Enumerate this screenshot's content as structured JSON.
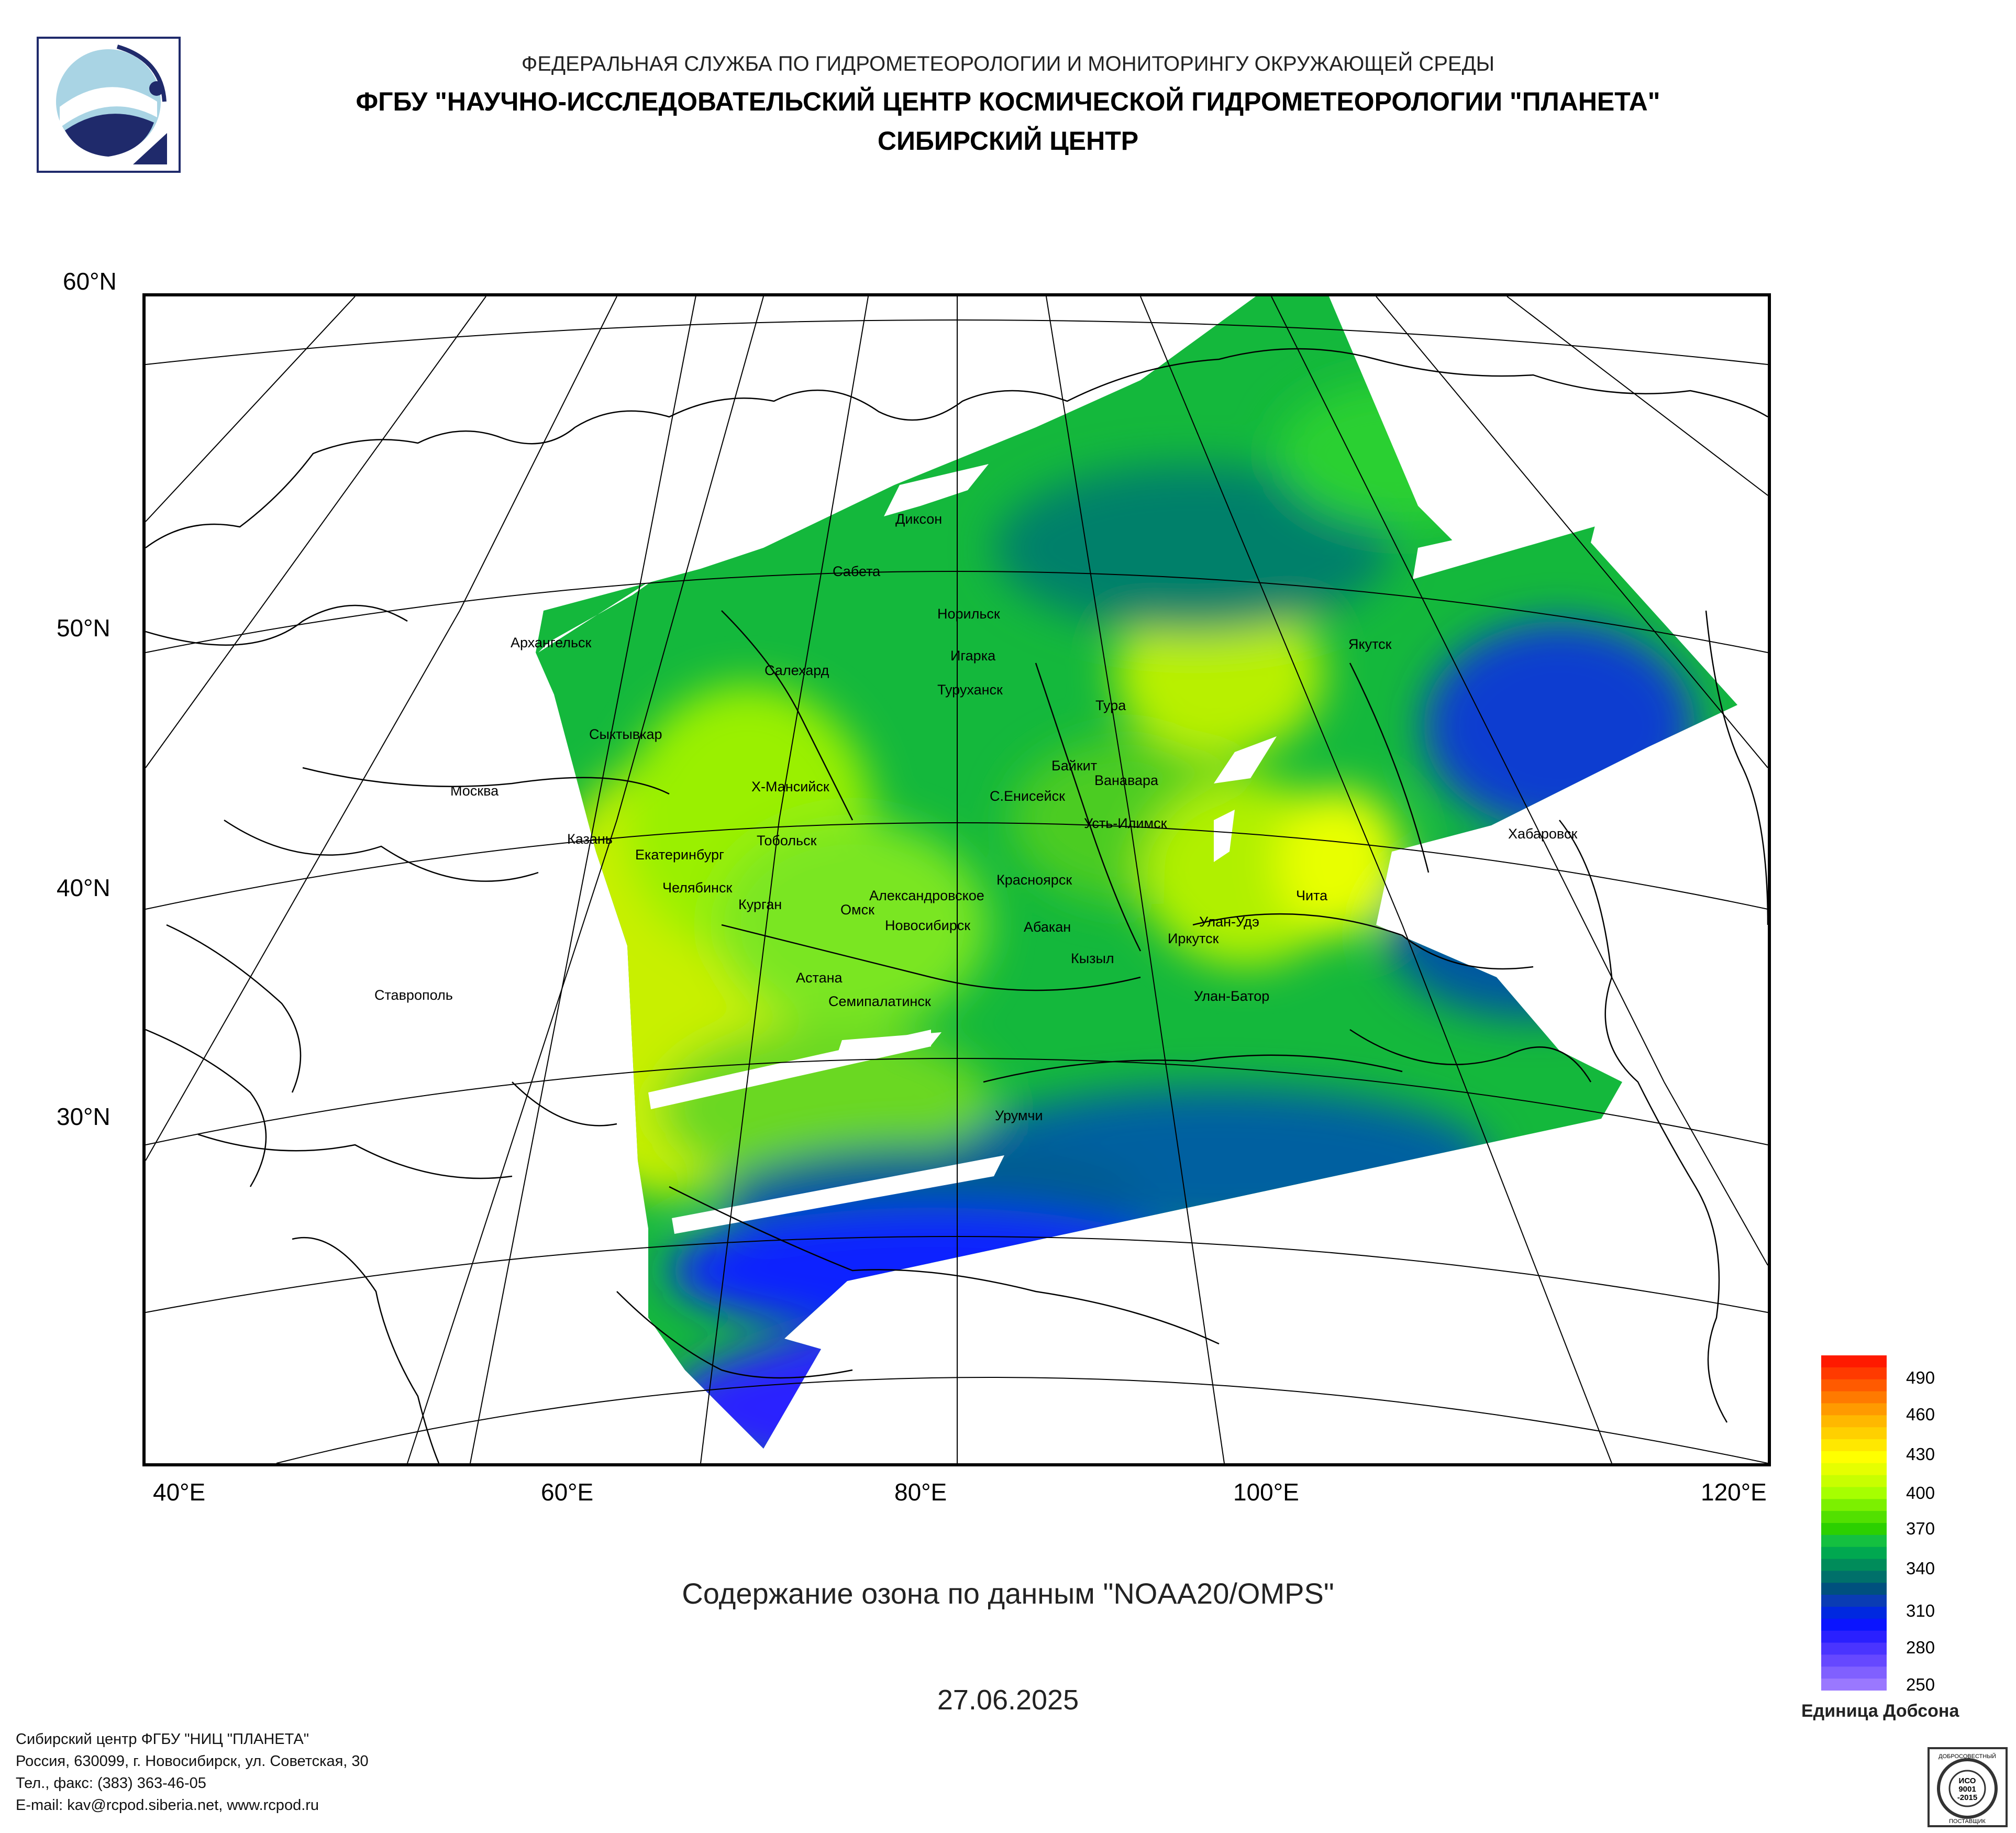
{
  "header": {
    "line1": "ФЕДЕРАЛЬНАЯ СЛУЖБА ПО ГИДРОМЕТЕОРОЛОГИИ И МОНИТОРИНГУ ОКРУЖАЮЩЕЙ СРЕДЫ",
    "line2": "ФГБУ \"НАУЧНО-ИССЛЕДОВАТЕЛЬСКИЙ ЦЕНТР КОСМИЧЕСКОЙ ГИДРОМЕТЕОРОЛОГИИ \"ПЛАНЕТА\"",
    "line3": "СИБИРСКИЙ ЦЕНТР"
  },
  "map": {
    "lat_labels": [
      "60°N",
      "50°N",
      "40°N",
      "30°N"
    ],
    "lon_labels": [
      "40°E",
      "60°E",
      "80°E",
      "100°E",
      "120°E"
    ],
    "cities": [
      "Диксон",
      "Сабета",
      "Норильск",
      "Игарка",
      "Туруханск",
      "Архангельск",
      "Салехард",
      "Тура",
      "Якутск",
      "Сыктывкар",
      "Байкит",
      "Ванавара",
      "Москва",
      "Х-Мансийск",
      "С.Енисейск",
      "Усть-Илимск",
      "Казань",
      "Тобольск",
      "Екатеринбург",
      "Хабаровск",
      "Челябинск",
      "Курган",
      "Александровское",
      "Омск",
      "Новосибирск",
      "Красноярск",
      "Абакан",
      "Улан-Удэ",
      "Чита",
      "Иркутск",
      "Кызыл",
      "Астана",
      "Семипалатинск",
      "Ставрополь",
      "Улан-Батор",
      "Урумчи"
    ]
  },
  "title": "Содержание озона по данным \"NOAA20/OMPS\"",
  "date": "27.06.2025",
  "legend": {
    "labels": [
      "490",
      "460",
      "430",
      "400",
      "370",
      "340",
      "310",
      "280",
      "250"
    ],
    "units": "Единица Добсона",
    "colors": [
      "#ff1a00",
      "#ff3a00",
      "#ff5a00",
      "#ff7a00",
      "#ff9a00",
      "#ffb800",
      "#ffd000",
      "#ffe800",
      "#ffff00",
      "#e6ff00",
      "#c8ff00",
      "#a6ff00",
      "#7cf000",
      "#52e000",
      "#2cd000",
      "#14c040",
      "#00a850",
      "#008c5a",
      "#00706a",
      "#00507e",
      "#0a3cb4",
      "#0028e0",
      "#0a14ff",
      "#2a20ff",
      "#4a34ff",
      "#6648ff",
      "#8060ff",
      "#9a78ff"
    ]
  },
  "footer": {
    "line1": "Сибирский центр ФГБУ \"НИЦ \"ПЛАНЕТА\"",
    "line2": "Россия, 630099, г. Новосибирск, ул. Советская, 30",
    "line3": "Тел., факс: (383) 363-46-05",
    "line4": "E-mail: kav@rcpod.siberia.net, www.rcpod.ru"
  },
  "iso_badge": {
    "top": "ДОБРОСОВЕСТНЫЙ",
    "middle1": "ИСО",
    "middle2": "9001",
    "middle3": "-2015",
    "bottom": "ПОСТАВЩИК"
  }
}
